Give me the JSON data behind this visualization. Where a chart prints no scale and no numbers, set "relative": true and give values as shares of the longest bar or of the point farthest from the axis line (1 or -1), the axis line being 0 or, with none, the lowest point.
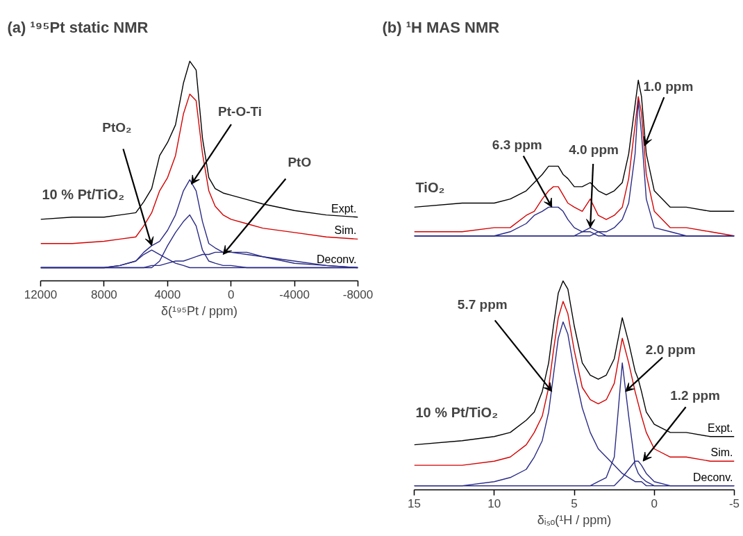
{
  "chart_data": [
    {
      "type": "line",
      "title": "(a) ¹⁹⁵Pt static NMR",
      "xlabel": "δ(¹⁹⁵Pt / ppm)",
      "relative": true,
      "x": [
        12000,
        10000,
        8000,
        7000,
        6000,
        5500,
        5000,
        4500,
        4000,
        3500,
        3000,
        2600,
        2200,
        1800,
        1400,
        1000,
        500,
        0,
        -1000,
        -2000,
        -4000,
        -6000,
        -8000
      ],
      "xlim": [
        12000,
        -8000
      ],
      "xticks": [
        12000,
        8000,
        4000,
        0,
        -4000,
        -8000
      ],
      "series": [
        {
          "name": "Expt.",
          "color": "#000000",
          "values": [
            0.28,
            0.29,
            0.29,
            0.3,
            0.31,
            0.36,
            0.42,
            0.57,
            0.63,
            0.71,
            0.9,
            1,
            0.96,
            0.65,
            0.47,
            0.42,
            0.4,
            0.39,
            0.37,
            0.35,
            0.32,
            0.3,
            0.29
          ]
        },
        {
          "name": "Sim.",
          "color": "#d40000",
          "values": [
            0.17,
            0.17,
            0.18,
            0.19,
            0.2,
            0.25,
            0.31,
            0.41,
            0.47,
            0.57,
            0.76,
            0.85,
            0.82,
            0.58,
            0.41,
            0.34,
            0.3,
            0.28,
            0.26,
            0.24,
            0.22,
            0.2,
            0.19
          ]
        },
        {
          "color": "#292a85",
          "values": [
            0.06,
            0.06,
            0.06,
            0.07,
            0.09,
            0.13,
            0.16,
            0.18,
            0.23,
            0.3,
            0.41,
            0.46,
            0.41,
            0.27,
            0.17,
            0.15,
            0.13,
            0.13,
            0.12,
            0.11,
            0.08,
            0.07,
            0.06
          ]
        },
        {
          "color": "#292a85",
          "values": [
            0.06,
            0.06,
            0.06,
            0.06,
            0.06,
            0.06,
            0.06,
            0.09,
            0.16,
            0.22,
            0.27,
            0.3,
            0.25,
            0.14,
            0.09,
            0.08,
            0.07,
            0.07,
            0.06,
            0.06,
            0.06,
            0.06,
            0.06
          ]
        },
        {
          "color": "#292a85",
          "values": [
            0.06,
            0.06,
            0.06,
            0.07,
            0.09,
            0.12,
            0.14,
            0.12,
            0.1,
            0.08,
            0.07,
            0.06,
            0.06,
            0.06,
            0.06,
            0.06,
            0.06,
            0.06,
            0.06,
            0.06,
            0.06,
            0.06,
            0.06
          ]
        },
        {
          "name": "Deconv.",
          "color": "#292a85",
          "values": [
            0.06,
            0.06,
            0.06,
            0.06,
            0.06,
            0.06,
            0.07,
            0.07,
            0.08,
            0.09,
            0.09,
            0.1,
            0.11,
            0.12,
            0.12,
            0.13,
            0.13,
            0.13,
            0.13,
            0.11,
            0.09,
            0.07,
            0.06
          ]
        }
      ],
      "annotations": [
        "10 % Pt/TiO₂",
        {
          "text": "PtO₂",
          "x": 5000,
          "y": 0.16
        },
        {
          "text": "Pt-O-Ti",
          "x": 2500,
          "y": 0.44
        },
        {
          "text": "PtO",
          "x": 500,
          "y": 0.12
        }
      ]
    },
    {
      "type": "line",
      "title": "(b) ¹H MAS NMR",
      "xlabel": "δᵢₛₒ(¹H / ppm)",
      "relative": true,
      "x": [
        15,
        12,
        10,
        9,
        8,
        7.5,
        7,
        6.6,
        6.3,
        6.0,
        5.7,
        5.4,
        5.0,
        4.5,
        4.0,
        3.5,
        3.0,
        2.5,
        2.0,
        1.6,
        1.2,
        1.0,
        0.8,
        0.5,
        0,
        -1,
        -2,
        -3.5,
        -5
      ],
      "xlim": [
        15,
        -5
      ],
      "xticks": [
        15,
        10,
        5,
        0,
        -5
      ],
      "series": [
        {
          "color": "#000000",
          "values": [
            0.69,
            0.7,
            0.7,
            0.71,
            0.73,
            0.75,
            0.77,
            0.79,
            0.79,
            0.79,
            0.77,
            0.76,
            0.74,
            0.74,
            0.75,
            0.73,
            0.72,
            0.73,
            0.75,
            0.82,
            0.94,
            1,
            0.96,
            0.82,
            0.73,
            0.69,
            0.69,
            0.68,
            0.68
          ]
        },
        {
          "color": "#d40000",
          "values": [
            0.63,
            0.63,
            0.64,
            0.64,
            0.67,
            0.68,
            0.71,
            0.73,
            0.74,
            0.74,
            0.72,
            0.7,
            0.69,
            0.68,
            0.71,
            0.67,
            0.66,
            0.67,
            0.69,
            0.76,
            0.89,
            0.96,
            0.92,
            0.77,
            0.68,
            0.64,
            0.64,
            0.63,
            0.62
          ]
        },
        {
          "color": "#292a85",
          "values": [
            0.62,
            0.62,
            0.62,
            0.63,
            0.65,
            0.67,
            0.68,
            0.69,
            0.69,
            0.69,
            0.68,
            0.66,
            0.64,
            0.63,
            0.63,
            0.62,
            0.62,
            0.62,
            0.62,
            0.62,
            0.62,
            0.62,
            0.62,
            0.62,
            0.62,
            0.62,
            0.62,
            0.62,
            0.62
          ]
        },
        {
          "color": "#292a85",
          "values": [
            0.62,
            0.62,
            0.62,
            0.62,
            0.62,
            0.62,
            0.62,
            0.62,
            0.62,
            0.62,
            0.62,
            0.62,
            0.62,
            0.63,
            0.64,
            0.63,
            0.62,
            0.62,
            0.62,
            0.62,
            0.62,
            0.62,
            0.62,
            0.62,
            0.62,
            0.62,
            0.62,
            0.62,
            0.62
          ]
        },
        {
          "color": "#292a85",
          "values": [
            0.62,
            0.62,
            0.62,
            0.62,
            0.62,
            0.62,
            0.62,
            0.62,
            0.62,
            0.62,
            0.62,
            0.62,
            0.62,
            0.62,
            0.62,
            0.63,
            0.63,
            0.64,
            0.66,
            0.7,
            0.82,
            0.95,
            0.87,
            0.71,
            0.64,
            0.63,
            0.62,
            0.62,
            0.62
          ]
        },
        {
          "name": "Expt.",
          "color": "#000000",
          "values": [
            0.11,
            0.12,
            0.13,
            0.14,
            0.17,
            0.19,
            0.24,
            0.31,
            0.4,
            0.48,
            0.51,
            0.49,
            0.4,
            0.31,
            0.28,
            0.27,
            0.28,
            0.32,
            0.42,
            0.36,
            0.29,
            0.27,
            0.24,
            0.19,
            0.16,
            0.14,
            0.14,
            0.13,
            0.13
          ]
        },
        {
          "name": "Sim.",
          "color": "#d40000",
          "values": [
            0.06,
            0.06,
            0.07,
            0.08,
            0.11,
            0.14,
            0.18,
            0.25,
            0.34,
            0.42,
            0.46,
            0.43,
            0.34,
            0.25,
            0.22,
            0.21,
            0.22,
            0.26,
            0.37,
            0.31,
            0.24,
            0.21,
            0.18,
            0.14,
            0.1,
            0.08,
            0.08,
            0.07,
            0.07
          ]
        },
        {
          "color": "#292a85",
          "values": [
            0.01,
            0.01,
            0.02,
            0.03,
            0.05,
            0.08,
            0.12,
            0.19,
            0.28,
            0.37,
            0.41,
            0.38,
            0.29,
            0.2,
            0.14,
            0.1,
            0.08,
            0.06,
            0.04,
            0.03,
            0.02,
            0.02,
            0.02,
            0.01,
            0.01,
            0.01,
            0.01,
            0.01,
            0.01
          ]
        },
        {
          "color": "#292a85",
          "values": [
            0.01,
            0.01,
            0.01,
            0.01,
            0.01,
            0.01,
            0.01,
            0.01,
            0.01,
            0.01,
            0.01,
            0.01,
            0.01,
            0.01,
            0.01,
            0.02,
            0.03,
            0.08,
            0.31,
            0.18,
            0.06,
            0.04,
            0.03,
            0.02,
            0.01,
            0.01,
            0.01,
            0.01,
            0.01
          ]
        },
        {
          "name": "Deconv.",
          "color": "#292a85",
          "values": [
            0.01,
            0.01,
            0.01,
            0.01,
            0.01,
            0.01,
            0.01,
            0.01,
            0.01,
            0.01,
            0.01,
            0.01,
            0.01,
            0.01,
            0.01,
            0.01,
            0.01,
            0.01,
            0.03,
            0.05,
            0.07,
            0.07,
            0.06,
            0.04,
            0.02,
            0.01,
            0.01,
            0.01,
            0.01
          ]
        }
      ],
      "annotations": [
        "TiO₂",
        {
          "text": "6.3 ppm",
          "x": 6.4,
          "y": 0.69
        },
        {
          "text": "4.0 ppm",
          "x": 4.0,
          "y": 0.64
        },
        {
          "text": "1.0 ppm",
          "x": 0.6,
          "y": 0.84
        },
        "10 % Pt/TiO₂",
        {
          "text": "5.7 ppm",
          "x": 6.4,
          "y": 0.24
        },
        {
          "text": "2.0 ppm",
          "x": 1.8,
          "y": 0.24
        },
        {
          "text": "1.2 ppm",
          "x": 0.7,
          "y": 0.07
        }
      ]
    }
  ]
}
